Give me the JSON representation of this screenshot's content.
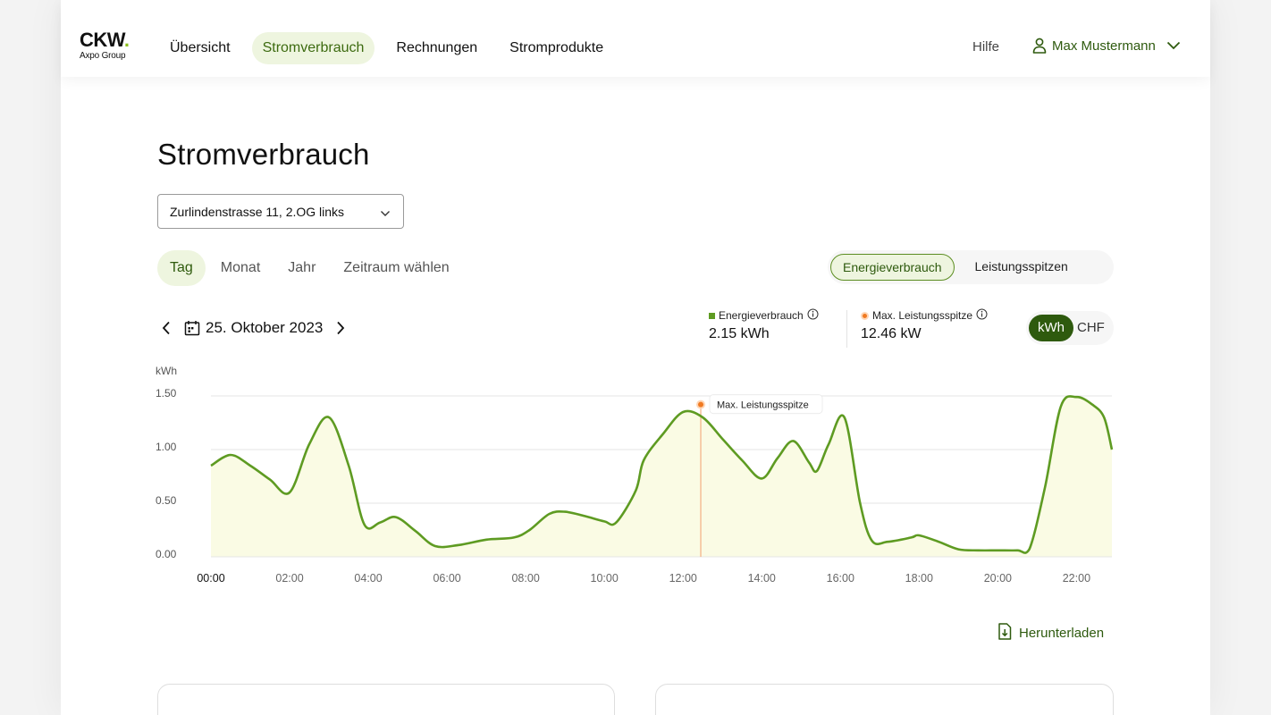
{
  "brand": {
    "logo_main": "CKW",
    "logo_dot": ".",
    "logo_sub": "Axpo Group",
    "accent": "#5e9b22"
  },
  "nav": {
    "items": [
      {
        "label": "Übersicht",
        "active": false
      },
      {
        "label": "Stromverbrauch",
        "active": true
      },
      {
        "label": "Rechnungen",
        "active": false
      },
      {
        "label": "Stromprodukte",
        "active": false
      }
    ],
    "help": "Hilfe",
    "user_name": "Max Mustermann"
  },
  "page": {
    "title": "Stromverbrauch",
    "address": "Zurlindenstrasse 11, 2.OG links"
  },
  "period_tabs": [
    "Tag",
    "Monat",
    "Jahr",
    "Zeitraum wählen"
  ],
  "mode_toggle": {
    "active": "Energieverbrauch",
    "inactive": "Leistungsspitzen"
  },
  "date": "25. Oktober 2023",
  "summary": {
    "energy_label": "Energieverbrauch",
    "energy_value": "2.15 kWh",
    "peak_label": "Max. Leistungsspitze",
    "peak_value": "12.46 kW"
  },
  "unit_toggle": {
    "active": "kWh",
    "inactive": "CHF"
  },
  "download": "Herunterladen",
  "cards": [
    {
      "title": ""
    },
    {
      "title": ""
    }
  ],
  "chart_data": {
    "type": "area",
    "ylabel": "kWh",
    "ylim": [
      0,
      1.5
    ],
    "y_ticks": [
      "0.00",
      "0.50",
      "1.00",
      "1.50"
    ],
    "x_ticks": [
      "00:00",
      "02:00",
      "04:00",
      "06:00",
      "08:00",
      "10:00",
      "12:00",
      "14:00",
      "16:00",
      "18:00",
      "20:00",
      "22:00"
    ],
    "x_range": [
      0,
      22.9
    ],
    "series": [
      {
        "color": "#5e9b22",
        "fill": "#fafbe4",
        "points": [
          [
            0.0,
            0.85
          ],
          [
            0.5,
            0.95
          ],
          [
            1.0,
            0.85
          ],
          [
            1.5,
            0.72
          ],
          [
            2.0,
            0.6
          ],
          [
            2.5,
            1.05
          ],
          [
            3.0,
            1.3
          ],
          [
            3.5,
            0.85
          ],
          [
            3.9,
            0.3
          ],
          [
            4.3,
            0.32
          ],
          [
            4.7,
            0.37
          ],
          [
            5.2,
            0.24
          ],
          [
            5.7,
            0.1
          ],
          [
            6.3,
            0.11
          ],
          [
            7.0,
            0.16
          ],
          [
            7.7,
            0.18
          ],
          [
            8.1,
            0.25
          ],
          [
            8.6,
            0.4
          ],
          [
            9.0,
            0.42
          ],
          [
            9.5,
            0.38
          ],
          [
            10.0,
            0.33
          ],
          [
            10.3,
            0.32
          ],
          [
            10.8,
            0.62
          ],
          [
            11.0,
            0.9
          ],
          [
            11.5,
            1.15
          ],
          [
            12.0,
            1.35
          ],
          [
            12.5,
            1.3
          ],
          [
            13.0,
            1.1
          ],
          [
            13.5,
            0.9
          ],
          [
            14.0,
            0.73
          ],
          [
            14.4,
            0.92
          ],
          [
            14.8,
            1.08
          ],
          [
            15.2,
            0.88
          ],
          [
            15.4,
            0.8
          ],
          [
            15.7,
            1.05
          ],
          [
            16.1,
            1.3
          ],
          [
            16.5,
            0.5
          ],
          [
            16.8,
            0.15
          ],
          [
            17.2,
            0.14
          ],
          [
            17.8,
            0.18
          ],
          [
            18.0,
            0.2
          ],
          [
            18.5,
            0.14
          ],
          [
            19.0,
            0.07
          ],
          [
            19.5,
            0.06
          ],
          [
            20.0,
            0.06
          ],
          [
            20.5,
            0.06
          ],
          [
            20.8,
            0.07
          ],
          [
            21.2,
            0.65
          ],
          [
            21.6,
            1.4
          ],
          [
            22.0,
            1.49
          ],
          [
            22.4,
            1.42
          ],
          [
            22.7,
            1.3
          ],
          [
            22.9,
            1.0
          ]
        ]
      }
    ],
    "marker": {
      "x": 12.45,
      "y": 1.42,
      "label": "Max. Leistungsspitze",
      "color": "#f07a22"
    }
  }
}
